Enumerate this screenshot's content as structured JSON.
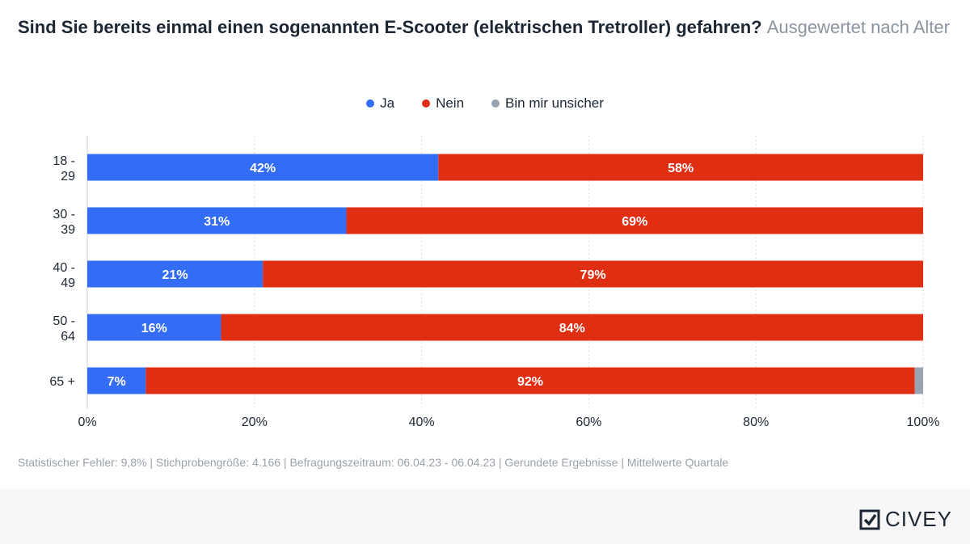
{
  "title": {
    "main": "Sind Sie bereits einmal einen sogenannten E-Scooter (elektrischen Tretroller) gefahren?",
    "sub": "Ausgewertet nach Alter"
  },
  "colors": {
    "ja": "#336cf5",
    "nein": "#e02e13",
    "unsicher": "#98a4b1",
    "grid": "#d9dcdf"
  },
  "chart_data": {
    "type": "bar",
    "orientation": "horizontal",
    "stacked": true,
    "categories": [
      "18 - 29",
      "30 - 39",
      "40 - 49",
      "50 - 64",
      "65 +"
    ],
    "series": [
      {
        "name": "Ja",
        "values": [
          42,
          31,
          21,
          16,
          7
        ],
        "labels": [
          "42%",
          "31%",
          "21%",
          "16%",
          "7%"
        ]
      },
      {
        "name": "Nein",
        "values": [
          58,
          69,
          79,
          84,
          92
        ],
        "labels": [
          "58%",
          "69%",
          "79%",
          "84%",
          "92%"
        ]
      },
      {
        "name": "Bin mir unsicher",
        "values": [
          0,
          0,
          0,
          0,
          1
        ],
        "labels": [
          "",
          "",
          "",
          "",
          ""
        ]
      }
    ],
    "xlim": [
      0,
      100
    ],
    "xticks": [
      "0%",
      "20%",
      "40%",
      "60%",
      "80%",
      "100%"
    ],
    "grid": true,
    "legend_position": "top-center"
  },
  "footnote": "Statistischer Fehler: 9,8% | Stichprobengröße: 4.166 | Befragungszeitraum: 06.04.23 - 06.04.23 | Gerundete Ergebnisse | Mittelwerte Quartale",
  "logo": {
    "text": "CIVEY"
  }
}
